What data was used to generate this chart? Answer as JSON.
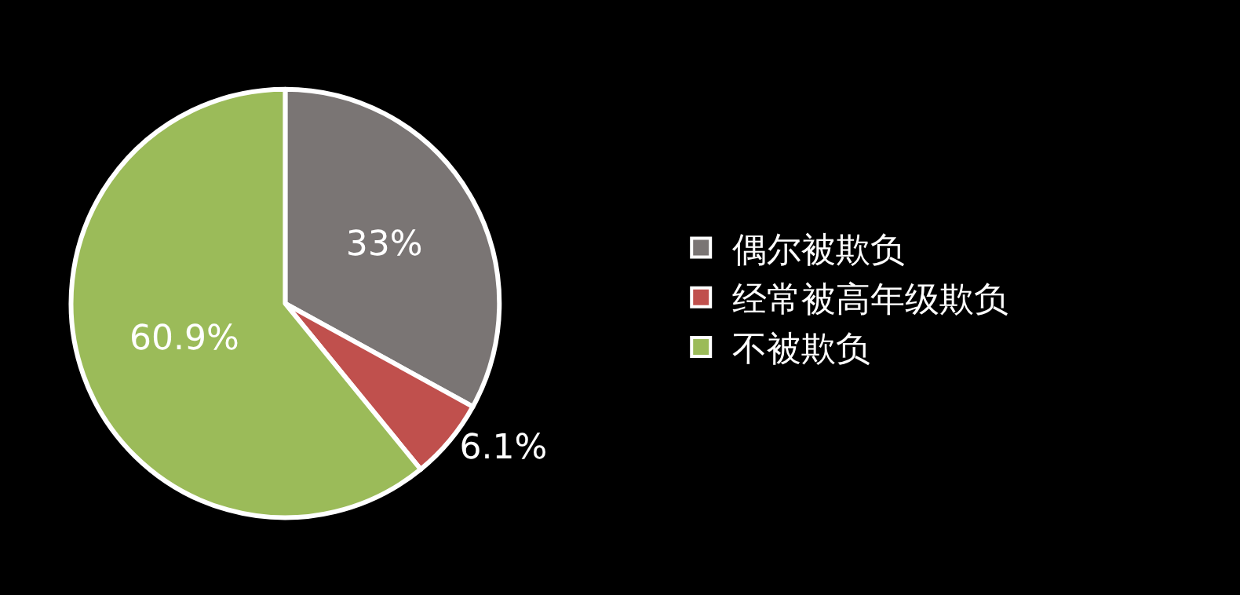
{
  "chart_data": {
    "type": "pie",
    "categories": [
      "偶尔被欺负",
      "经常被高年级欺负",
      "不被欺负"
    ],
    "values": [
      33,
      6.1,
      60.9
    ],
    "value_labels": [
      "33%",
      "6.1%",
      "60.9%"
    ],
    "colors": [
      "#7a7574",
      "#c0504d",
      "#9bbb59"
    ],
    "legend": "right"
  }
}
